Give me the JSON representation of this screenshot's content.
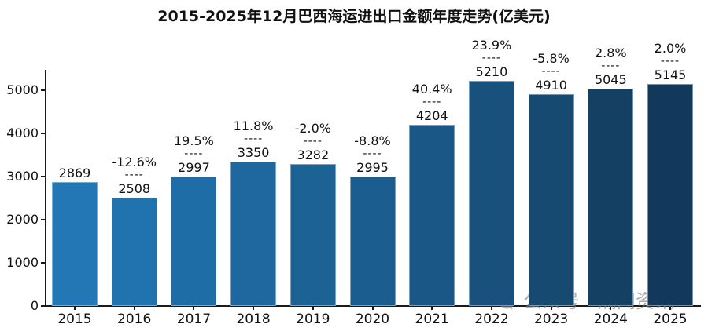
{
  "title": "2015-2025年12月巴西海运进出口金额年度走势(亿美元)",
  "watermark": {
    "icon": "wechat-icon",
    "label": "公众号 · 瀚闻资讯"
  },
  "chart_data": {
    "type": "bar",
    "title": "2015-2025年12月巴西海运进出口金额年度走势(亿美元)",
    "categories": [
      "2015",
      "2016",
      "2017",
      "2018",
      "2019",
      "2020",
      "2021",
      "2022",
      "2023",
      "2024",
      "2025"
    ],
    "values": [
      2869,
      2508,
      2997,
      3350,
      3282,
      2995,
      4204,
      5210,
      4910,
      5045,
      5145
    ],
    "pct_change_labels": [
      "",
      "-12.6%",
      "19.5%",
      "11.8%",
      "-2.0%",
      "-8.8%",
      "40.4%",
      "23.9%",
      "-5.8%",
      "2.8%",
      "2.0%"
    ],
    "label_separator": "----",
    "bar_colors": [
      "#2277b4",
      "#2173af",
      "#1f6da7",
      "#1e689f",
      "#1c6295",
      "#1b5d8e",
      "#1a5786",
      "#18517c",
      "#164a70",
      "#144064",
      "#12395c"
    ],
    "xlabel": "",
    "ylabel": "",
    "ylim": [
      0,
      5500
    ],
    "yticks": [
      0,
      1000,
      2000,
      3000,
      4000,
      5000
    ],
    "grid": false,
    "legend": false,
    "axis_color": "#1a1a1a",
    "background_color": "#ffffff"
  }
}
